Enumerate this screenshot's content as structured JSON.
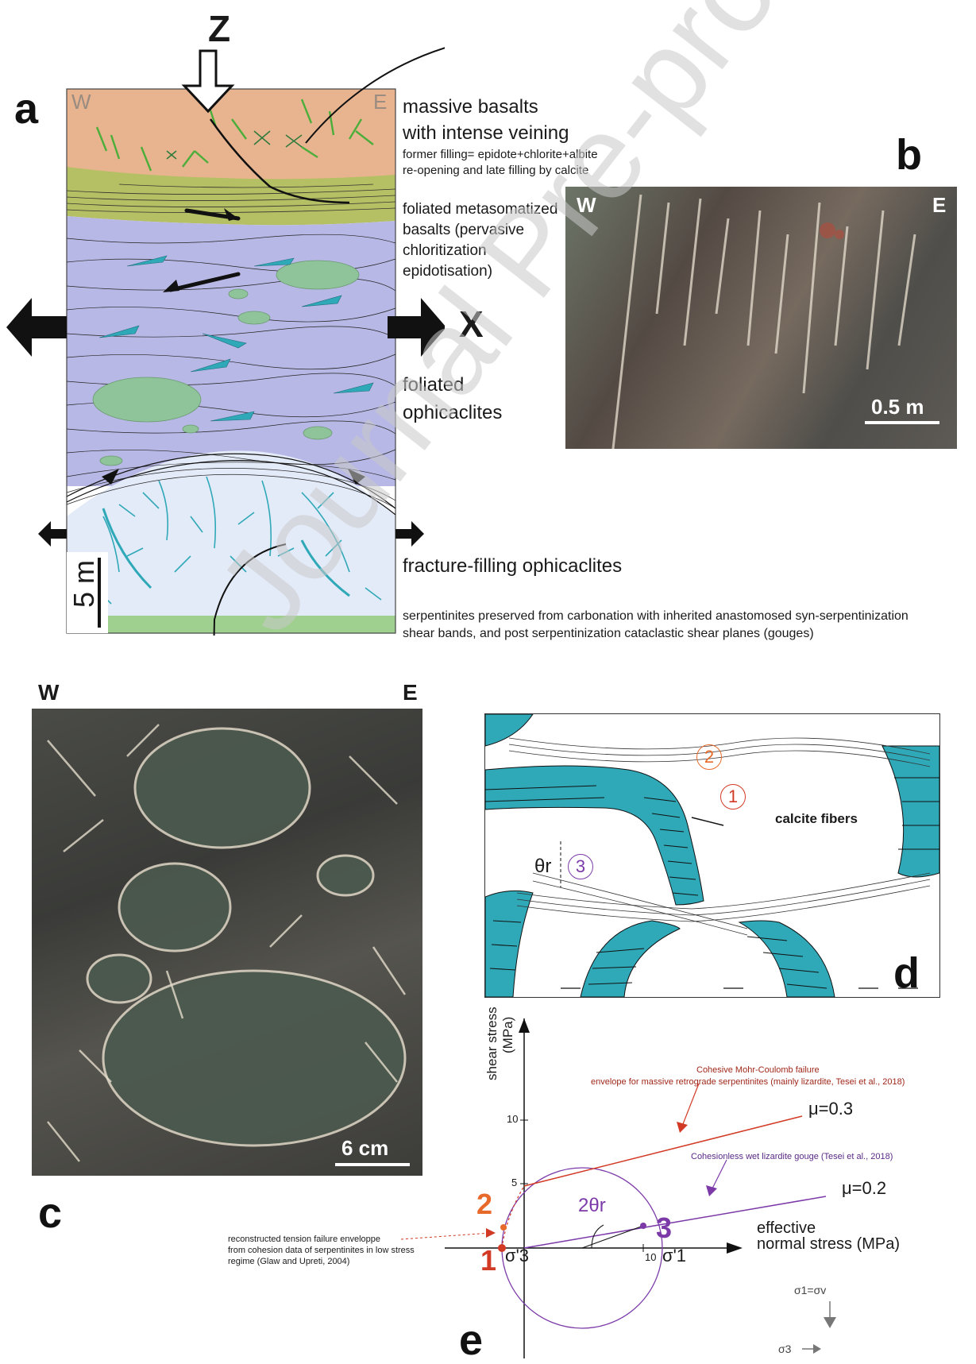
{
  "panels": {
    "a": "a",
    "b": "b",
    "c": "c",
    "d": "d",
    "e": "e"
  },
  "panel_a": {
    "compass_w": "W",
    "compass_e": "E",
    "axis_z": "Z",
    "axis_x": "X",
    "scale_label": "5 m",
    "labels": {
      "basalts_title_1": "massive basalts",
      "basalts_title_2": "with intense veining",
      "basalts_note_1": "former filling= epidote+chlorite+albite",
      "basalts_note_2": "re-opening and late filling by calcite",
      "foliated_meta_1": "foliated metasomatized",
      "foliated_meta_2": "basalts (pervasive",
      "foliated_meta_3": "chloritization",
      "foliated_meta_4": "epidotisation)",
      "foliated_ophi_1": "foliated",
      "foliated_ophi_2": "ophicaclites",
      "fracture_filling": "fracture-filling ophicaclites",
      "serpentinites_1": "serpentinites preserved from carbonation with inherited anastomosed syn-serpentinization",
      "serpentinites_2": "shear bands, and post serpentinization cataclastic shear planes (gouges)"
    }
  },
  "panel_b": {
    "compass_w": "W",
    "compass_e": "E",
    "scale_label": "0.5 m"
  },
  "panel_c": {
    "compass_w": "W",
    "compass_e": "E",
    "scale_label": "6 cm"
  },
  "panel_d": {
    "marker_1": "1",
    "marker_2": "2",
    "marker_3": "3",
    "calcite_label": "calcite fibers",
    "theta_label": "θr"
  },
  "panel_e": {
    "y_axis_label_1": "shear stress",
    "y_axis_label_2": "(MPa)",
    "x_axis_label_1": "effective",
    "x_axis_label_2": "normal stress (MPa)",
    "tick_y_10": "10",
    "tick_y_5": "5",
    "tick_x_10": "10",
    "mu_03": "μ=0.3",
    "mu_02": "μ=0.2",
    "cohesive_1": "Cohesive Mohr-Coulomb failure",
    "cohesive_2": "envelope for massive retrograde serpentinites (mainly lizardite, Tesei et al., 2018)",
    "cohesionless": "Cohesionless wet lizardite gouge (Tesei et al., 2018)",
    "tension_1": "reconstructed tension failure enveloppe",
    "tension_2": "from cohesion data of serpentinites in low stress",
    "tension_3": "regime (Glaw and Upreti, 2004)",
    "point_1": "1",
    "point_2": "2",
    "point_3": "3",
    "sigma3": "σ'3",
    "sigma1": "σ'1",
    "two_theta": "2θr",
    "stress_sigma1": "σ1=σv",
    "stress_sigma3": "σ3"
  },
  "watermark": "Journal Pre-proof",
  "colors": {
    "basalt": "#e8b48f",
    "meta_basalt": "#b5bf63",
    "ophicalcite": "#b8b8e6",
    "fracture_ophi": "#e4ebf8",
    "serpentinite": "#9fd08f",
    "clast_green": "#8fc49a",
    "vein_blue": "#2fa8b8",
    "red_envelope": "#d23a25",
    "purple_envelope": "#7b3aa8",
    "orange_point": "#e86a2a"
  }
}
